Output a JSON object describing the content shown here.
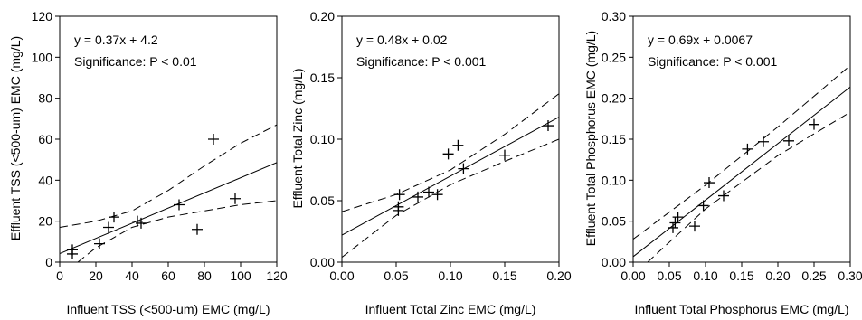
{
  "chart_data": [
    {
      "type": "scatter",
      "xlabel": "Influent TSS (<500-um) EMC (mg/L)",
      "ylabel": "Effluent TSS (<500-um) EMC (mg/L)",
      "xlim": [
        0,
        120
      ],
      "ylim": [
        0,
        120
      ],
      "xticks": [
        "0",
        "20",
        "40",
        "60",
        "80",
        "100",
        "120"
      ],
      "yticks": [
        "0",
        "20",
        "40",
        "60",
        "80",
        "100",
        "120"
      ],
      "annotations": [
        "y = 0.37x + 4.2",
        "Significance:  P < 0.01"
      ],
      "points": [
        [
          7,
          6
        ],
        [
          7,
          4
        ],
        [
          22,
          9
        ],
        [
          27,
          17
        ],
        [
          30,
          22
        ],
        [
          43,
          20
        ],
        [
          45,
          19
        ],
        [
          66,
          28
        ],
        [
          76,
          16
        ],
        [
          85,
          60
        ],
        [
          97,
          31
        ]
      ],
      "fit": {
        "slope": 0.37,
        "intercept": 4.2
      },
      "ci_upper": [
        [
          0,
          17
        ],
        [
          20,
          20
        ],
        [
          40,
          25
        ],
        [
          60,
          35
        ],
        [
          80,
          47
        ],
        [
          100,
          58
        ],
        [
          120,
          67
        ]
      ],
      "ci_lower": [
        [
          10,
          0
        ],
        [
          20,
          7
        ],
        [
          40,
          17
        ],
        [
          60,
          22
        ],
        [
          80,
          25
        ],
        [
          100,
          28
        ],
        [
          120,
          30
        ]
      ]
    },
    {
      "type": "scatter",
      "xlabel": "Influent Total Zinc EMC (mg/L)",
      "ylabel": "Effluent Total Zinc (mg/L)",
      "xlim": [
        0,
        0.2
      ],
      "ylim": [
        0,
        0.2
      ],
      "xticks": [
        "0.00",
        "0.05",
        "0.10",
        "0.15",
        "0.20"
      ],
      "yticks": [
        "0.00",
        "0.05",
        "0.10",
        "0.15",
        "0.20"
      ],
      "annotations": [
        "y = 0.48x + 0.02",
        "Significance:  P < 0.001"
      ],
      "points": [
        [
          0.052,
          0.045
        ],
        [
          0.052,
          0.042
        ],
        [
          0.053,
          0.055
        ],
        [
          0.07,
          0.053
        ],
        [
          0.08,
          0.057
        ],
        [
          0.088,
          0.055
        ],
        [
          0.098,
          0.088
        ],
        [
          0.107,
          0.095
        ],
        [
          0.112,
          0.076
        ],
        [
          0.15,
          0.087
        ],
        [
          0.19,
          0.111
        ]
      ],
      "fit": {
        "slope": 0.48,
        "intercept": 0.022
      },
      "ci_upper": [
        [
          0,
          0.041
        ],
        [
          0.05,
          0.055
        ],
        [
          0.1,
          0.075
        ],
        [
          0.15,
          0.104
        ],
        [
          0.2,
          0.137
        ]
      ],
      "ci_lower": [
        [
          0,
          0.004
        ],
        [
          0.05,
          0.038
        ],
        [
          0.1,
          0.063
        ],
        [
          0.15,
          0.082
        ],
        [
          0.2,
          0.1
        ]
      ]
    },
    {
      "type": "scatter",
      "xlabel": "Influent Total Phosphorus EMC (mg/L)",
      "ylabel": "Effluent Total Phosphorus EMC (mg/L)",
      "xlim": [
        0,
        0.3
      ],
      "ylim": [
        0,
        0.3
      ],
      "xticks": [
        "0.00",
        "0.05",
        "0.10",
        "0.15",
        "0.20",
        "0.25",
        "0.30"
      ],
      "yticks": [
        "0.00",
        "0.05",
        "0.10",
        "0.15",
        "0.20",
        "0.25",
        "0.30"
      ],
      "annotations": [
        "y = 0.69x + 0.0067",
        "Significance:  P < 0.001"
      ],
      "points": [
        [
          0.055,
          0.042
        ],
        [
          0.058,
          0.048
        ],
        [
          0.062,
          0.055
        ],
        [
          0.085,
          0.044
        ],
        [
          0.097,
          0.069
        ],
        [
          0.105,
          0.097
        ],
        [
          0.125,
          0.081
        ],
        [
          0.158,
          0.138
        ],
        [
          0.18,
          0.147
        ],
        [
          0.215,
          0.148
        ],
        [
          0.25,
          0.168
        ]
      ],
      "fit": {
        "slope": 0.69,
        "intercept": 0.0067
      },
      "ci_upper": [
        [
          0,
          0.028
        ],
        [
          0.1,
          0.094
        ],
        [
          0.2,
          0.165
        ],
        [
          0.3,
          0.24
        ]
      ],
      "ci_lower": [
        [
          0.02,
          0
        ],
        [
          0.1,
          0.065
        ],
        [
          0.2,
          0.13
        ],
        [
          0.3,
          0.183
        ]
      ]
    }
  ]
}
